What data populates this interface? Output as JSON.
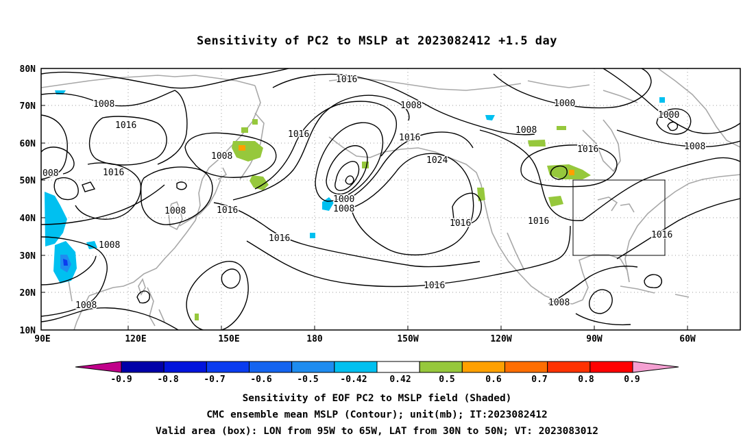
{
  "title": "Sensitivity of PC2 to MSLP at 2023082412 +1.5 day",
  "map": {
    "lat_labels": [
      "80N",
      "70N",
      "60N",
      "50N",
      "40N",
      "30N",
      "20N",
      "10N"
    ],
    "lon_labels": [
      "90E",
      "120E",
      "150E",
      "180",
      "150W",
      "120W",
      "90W",
      "60W"
    ],
    "contour_labels": [
      {
        "t": "1016",
        "c": "b"
      },
      {
        "t": "1008",
        "c": "a"
      },
      {
        "t": "1008",
        "c": "a"
      },
      {
        "t": "1000",
        "c": "b"
      },
      {
        "t": "1016",
        "c": "b"
      },
      {
        "t": "1000",
        "c": "b"
      },
      {
        "t": "1008",
        "c": "b"
      },
      {
        "t": "1016",
        "c": "b"
      },
      {
        "t": "1016",
        "c": "b"
      },
      {
        "t": "1024",
        "c": "b"
      },
      {
        "t": "1008",
        "c": "b"
      },
      {
        "t": "1016",
        "c": "b"
      },
      {
        "t": "1016",
        "c": "b"
      },
      {
        "t": "1008",
        "c": "b"
      },
      {
        "t": "1008",
        "c": "b"
      },
      {
        "t": "1008",
        "c": "b"
      },
      {
        "t": "1016",
        "c": "b"
      },
      {
        "t": "1000",
        "c": "b"
      },
      {
        "t": "1008",
        "c": "b"
      },
      {
        "t": "1016",
        "c": "b"
      },
      {
        "t": "1016",
        "c": "b"
      },
      {
        "t": "1016",
        "c": "b"
      },
      {
        "t": "1016",
        "c": "b"
      },
      {
        "t": "1008",
        "c": "b"
      },
      {
        "t": "1016",
        "c": "b"
      },
      {
        "t": "1008",
        "c": "b"
      },
      {
        "t": "008",
        "c": "b"
      }
    ]
  },
  "colorbar": {
    "labels": [
      "-0.9",
      "-0.8",
      "-0.7",
      "-0.6",
      "-0.5",
      "-0.42",
      "0.42",
      "0.5",
      "0.6",
      "0.7",
      "0.8",
      "0.9"
    ],
    "colors": [
      "#c0008a",
      "#0000a8",
      "#0014dc",
      "#0a3cf0",
      "#1464f0",
      "#1e8cf0",
      "#00c0f0",
      "#ffffff",
      "#96c83c",
      "#ffa000",
      "#ff6e00",
      "#ff3200",
      "#ff0000",
      "#f5a0d2"
    ]
  },
  "captions": [
    "Sensitivity of EOF PC2 to MSLP field (Shaded)",
    "CMC ensemble mean MSLP (Contour); unit(mb); IT:2023082412",
    "Valid area (box): LON from 95W to 65W, LAT from 30N to 50N; VT: 2023083012"
  ]
}
